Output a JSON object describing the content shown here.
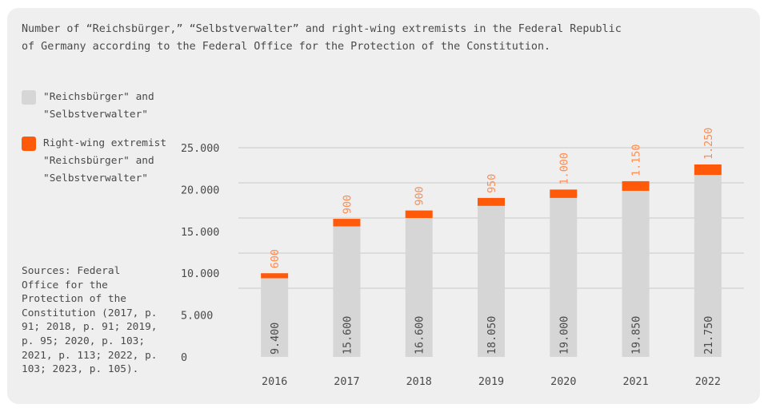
{
  "title": "Number of “Reichsbürger,” “Selbstverwalter” and right-wing extremists in the Federal Republic of Germany according to the Federal Office for the Protection of the Constitution.",
  "legend": [
    {
      "label": "\"Reichsbürger\" and \"Selbstverwalter\"",
      "color": "#d6d6d6"
    },
    {
      "label": "Right-wing extremist \"Reichsbürger\" and \"Selbstverwalter\"",
      "color": "#ff5a0a"
    }
  ],
  "sources": "Sources: Federal Office for the Protection of the Constitution (2017, p. 91; 2018, p. 91; 2019, p. 95; 2020, p. 103; 2021, p. 113; 2022, p. 103; 2023, p. 105).",
  "chart_data": {
    "type": "bar",
    "stacked": true,
    "categories": [
      "2016",
      "2017",
      "2018",
      "2019",
      "2020",
      "2021",
      "2022"
    ],
    "series": [
      {
        "name": "\"Reichsbürger\" and \"Selbstverwalter\"",
        "values": [
          9400,
          15600,
          16600,
          18050,
          19000,
          19850,
          21750
        ],
        "labels": [
          "9.400",
          "15.600",
          "16.600",
          "18.050",
          "19.000",
          "19.850",
          "21.750"
        ],
        "color": "#d6d6d6"
      },
      {
        "name": "Right-wing extremist \"Reichsbürger\" and \"Selbstverwalter\"",
        "values": [
          600,
          900,
          900,
          950,
          1000,
          1150,
          1250
        ],
        "labels": [
          "600",
          "900",
          "900",
          "950",
          "1.000",
          "1.150",
          "1.250"
        ],
        "color": "#ff5a0a"
      }
    ],
    "yticks": [
      0,
      5000,
      10000,
      15000,
      20000,
      25000
    ],
    "ytick_labels": [
      "0",
      "5.000",
      "10.000",
      "15.000",
      "20.000",
      "25.000"
    ],
    "ylim": [
      0,
      25000
    ],
    "grid": true,
    "legend_position": "left"
  }
}
